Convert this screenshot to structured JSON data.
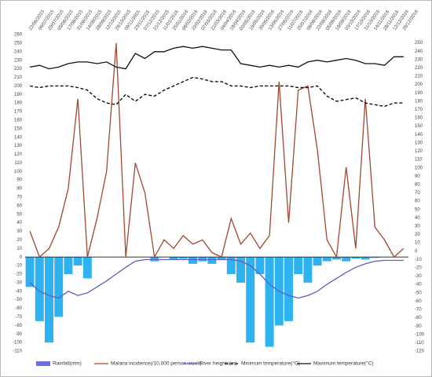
{
  "chart_data": {
    "type": "combo",
    "categories": [
      "22/06/2015",
      "06/07/2015",
      "20/07/2015",
      "03/08/2015",
      "17/08/2015",
      "31/08/2015",
      "14/09/2015",
      "28/09/2015",
      "12/10/2015",
      "26/10/2015",
      "09/11/2015",
      "23/11/2015",
      "07/12/2015",
      "21/12/2015",
      "11/01/2016",
      "25/01/2016",
      "08/02/2016",
      "22/02/2016",
      "07/03/2016",
      "21/03/2016",
      "04/04/2016",
      "18/04/2016",
      "02/05/2016",
      "16/05/2016",
      "30/05/2016",
      "13/06/2016",
      "27/06/2016",
      "11/07/2016",
      "25/07/2016",
      "08/08/2016",
      "22/08/2016",
      "05/09/2016",
      "19/09/2016",
      "03/10/2016",
      "17/10/2016",
      "31/10/2016",
      "14/11/2016",
      "28/11/2016",
      "12/12/2016",
      "26/12/2016"
    ],
    "series": [
      {
        "name": "Rainfall(mm)",
        "type": "bar",
        "color": "#2eb2f0",
        "legend_color": "#6f6fe0",
        "values": [
          -35,
          -75,
          -100,
          -70,
          -20,
          -10,
          -25,
          0,
          0,
          0,
          0,
          0,
          0,
          -5,
          0,
          -3,
          -2,
          -8,
          -5,
          -8,
          -3,
          -20,
          -30,
          -100,
          -20,
          -105,
          -80,
          -75,
          -20,
          -30,
          -10,
          -5,
          -3,
          -5,
          -2,
          -3,
          -1,
          0,
          0,
          0
        ]
      },
      {
        "name": "Malaria incidence(/10,000 person-week)",
        "type": "line",
        "color": "#a3472e",
        "values": [
          30,
          0,
          10,
          35,
          80,
          185,
          0,
          45,
          100,
          250,
          0,
          110,
          75,
          0,
          20,
          10,
          25,
          15,
          20,
          5,
          0,
          45,
          15,
          28,
          10,
          25,
          205,
          40,
          195,
          200,
          125,
          20,
          0,
          105,
          10,
          185,
          35,
          20,
          0,
          10
        ]
      },
      {
        "name": "River heights(m)",
        "type": "line",
        "color": "#5b5fc7",
        "values": [
          -30,
          -40,
          -45,
          -48,
          -40,
          -45,
          -42,
          -35,
          -28,
          -20,
          -12,
          -5,
          -3,
          -3,
          -3,
          -3,
          -3,
          -3,
          -3,
          -3,
          -3,
          -3,
          -5,
          -10,
          -20,
          -32,
          -40,
          -45,
          -48,
          -45,
          -40,
          -32,
          -25,
          -18,
          -12,
          -8,
          -5,
          -4,
          -4,
          -4
        ]
      },
      {
        "name": "Minimum temperature(°C)",
        "type": "line",
        "style": "dashed",
        "color": "#111111",
        "values": [
          200,
          198,
          200,
          200,
          200,
          198,
          195,
          185,
          180,
          178,
          190,
          182,
          190,
          188,
          195,
          200,
          205,
          210,
          208,
          205,
          205,
          200,
          200,
          198,
          200,
          200,
          200,
          200,
          198,
          198,
          200,
          188,
          182,
          184,
          186,
          180,
          178,
          176,
          180,
          180
        ]
      },
      {
        "name": "Maximum temperature(°C)",
        "type": "line",
        "color": "#111111",
        "values": [
          222,
          224,
          220,
          222,
          226,
          228,
          228,
          226,
          228,
          222,
          220,
          238,
          232,
          240,
          240,
          244,
          246,
          244,
          246,
          244,
          242,
          242,
          226,
          224,
          222,
          224,
          222,
          224,
          222,
          228,
          230,
          228,
          230,
          232,
          230,
          226,
          226,
          224,
          234,
          234
        ]
      }
    ],
    "ylim": [
      -110,
      260
    ],
    "yticks": [
      -110,
      -100,
      -90,
      -80,
      -70,
      -60,
      -50,
      -40,
      -30,
      -20,
      -10,
      0,
      10,
      20,
      30,
      40,
      50,
      60,
      70,
      80,
      90,
      100,
      110,
      120,
      130,
      140,
      150,
      160,
      170,
      180,
      190,
      200,
      210,
      220,
      230,
      240,
      250,
      260
    ],
    "y2lim": [
      -120,
      260
    ],
    "y2ticks": [
      -120,
      -110,
      -100,
      -90,
      -80,
      -70,
      -60,
      -50,
      -40,
      -30,
      -20,
      -10,
      0,
      10,
      20,
      30,
      40,
      50,
      60,
      70,
      80,
      90,
      100,
      110,
      120,
      130,
      140,
      150,
      160,
      170,
      180,
      190,
      200,
      210,
      220,
      230,
      240,
      250
    ],
    "grid": false
  }
}
